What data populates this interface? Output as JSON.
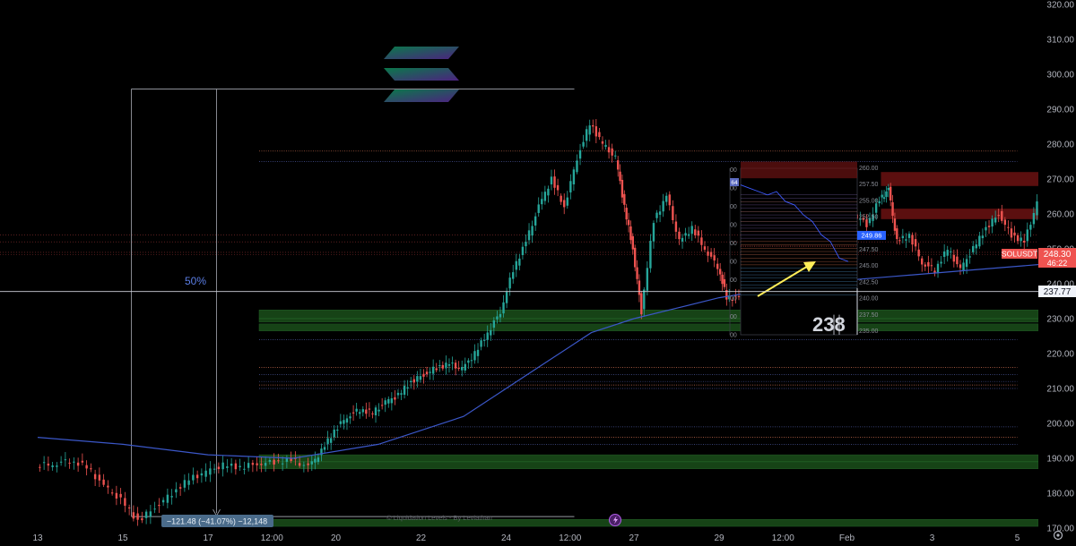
{
  "chart_data": {
    "type": "candlestick",
    "symbol": "SOLUSDT",
    "price_label": "248.30",
    "countdown": "46:22",
    "crosshair_price": "237.77",
    "fib_label": "50%",
    "measure_label": "−121.48 (−41.07%) −12,148",
    "watermark": "© Liquidation Levels - By Leviathan",
    "inset_big_label": "238",
    "inset_badge_price": "249.86",
    "inset_top_badge": "64",
    "ylim": [
      170,
      320
    ],
    "y_ticks": [
      "320.00",
      "310.00",
      "300.00",
      "290.00",
      "280.00",
      "270.00",
      "260.00",
      "250.00",
      "240.00",
      "230.00",
      "220.00",
      "210.00",
      "200.00",
      "190.00",
      "180.00",
      "170.00"
    ],
    "x_ticks": [
      "13",
      "15",
      "17",
      "12:00",
      "20",
      "22",
      "24",
      "12:00",
      "27",
      "29",
      "12:00",
      "Feb",
      "3",
      "5"
    ],
    "inset_y_ticks": [
      "260.00",
      "257.50",
      "255.00",
      "252.50",
      "250.00",
      "247.50",
      "245.00",
      "242.50",
      "240.00",
      "237.50",
      "235.00"
    ],
    "inset_left_ticks": [
      "00",
      "00",
      "00",
      "00",
      "00",
      "00",
      "00",
      "00",
      "00",
      "00"
    ],
    "price_path": [
      [
        0,
        188
      ],
      [
        0.4,
        188.3
      ],
      [
        0.8,
        189.5
      ],
      [
        1.2,
        187.5
      ],
      [
        1.6,
        182
      ],
      [
        2.0,
        178
      ],
      [
        2.4,
        172
      ],
      [
        2.8,
        176
      ],
      [
        3.2,
        180
      ],
      [
        3.6,
        184
      ],
      [
        4.0,
        186
      ],
      [
        4.4,
        188
      ],
      [
        4.8,
        187.5
      ],
      [
        5.2,
        188.5
      ],
      [
        5.6,
        189
      ],
      [
        6.0,
        189.5
      ],
      [
        6.4,
        187.5
      ],
      [
        6.7,
        192
      ],
      [
        7.0,
        198
      ],
      [
        7.3,
        202
      ],
      [
        7.6,
        204
      ],
      [
        7.9,
        203
      ],
      [
        8.2,
        206
      ],
      [
        8.5,
        208
      ],
      [
        8.8,
        212
      ],
      [
        9.1,
        214
      ],
      [
        9.4,
        216
      ],
      [
        9.7,
        217
      ],
      [
        10.0,
        215.5
      ],
      [
        10.3,
        220
      ],
      [
        10.6,
        226
      ],
      [
        10.9,
        232
      ],
      [
        11.2,
        244
      ],
      [
        11.5,
        252
      ],
      [
        11.8,
        262
      ],
      [
        12.1,
        270
      ],
      [
        12.4,
        262
      ],
      [
        12.7,
        276
      ],
      [
        13.0,
        286
      ],
      [
        13.3,
        280
      ],
      [
        13.6,
        276
      ],
      [
        13.8,
        262
      ],
      [
        14.0,
        250
      ],
      [
        14.2,
        232
      ],
      [
        14.5,
        258
      ],
      [
        14.8,
        265
      ],
      [
        15.1,
        252
      ],
      [
        15.4,
        256
      ],
      [
        15.7,
        250
      ],
      [
        16.0,
        245
      ],
      [
        16.2,
        236
      ],
      [
        16.5,
        236
      ],
      [
        16.8,
        244
      ],
      [
        17.1,
        238
      ],
      [
        17.4,
        236
      ],
      [
        17.7,
        248
      ],
      [
        18.0,
        252
      ],
      [
        18.3,
        254
      ],
      [
        18.6,
        257
      ],
      [
        18.9,
        253
      ],
      [
        19.2,
        260
      ],
      [
        19.5,
        257
      ],
      [
        19.8,
        264
      ],
      [
        20.0,
        267
      ],
      [
        20.2,
        252
      ],
      [
        20.5,
        254
      ],
      [
        20.8,
        246
      ],
      [
        21.1,
        244
      ],
      [
        21.4,
        250
      ],
      [
        21.7,
        244
      ],
      [
        22.0,
        250
      ],
      [
        22.3,
        256
      ],
      [
        22.6,
        260
      ],
      [
        22.9,
        254
      ],
      [
        23.2,
        252
      ],
      [
        23.5,
        263
      ],
      [
        23.8,
        268
      ],
      [
        24.1,
        266
      ],
      [
        24.4,
        262
      ],
      [
        24.7,
        256
      ],
      [
        25.0,
        250
      ],
      [
        25.3,
        246
      ],
      [
        25.6,
        250
      ],
      [
        25.9,
        247
      ],
      [
        26.2,
        254
      ],
      [
        26.5,
        258
      ],
      [
        26.8,
        257
      ],
      [
        27.1,
        254
      ],
      [
        27.4,
        256
      ],
      [
        27.7,
        253
      ],
      [
        28.0,
        254
      ],
      [
        28.3,
        251
      ],
      [
        28.6,
        252
      ],
      [
        28.9,
        248.3
      ]
    ],
    "ma_path": [
      [
        0,
        196
      ],
      [
        2,
        194
      ],
      [
        4,
        191
      ],
      [
        6,
        190
      ],
      [
        8,
        194
      ],
      [
        10,
        202
      ],
      [
        11,
        210
      ],
      [
        12,
        218
      ],
      [
        13,
        226
      ],
      [
        14,
        230
      ],
      [
        15,
        233
      ],
      [
        16,
        236
      ],
      [
        17,
        238
      ],
      [
        18,
        240
      ],
      [
        20,
        242
      ],
      [
        22,
        244
      ],
      [
        24,
        246
      ],
      [
        26,
        247
      ],
      [
        27,
        248
      ],
      [
        28,
        249
      ],
      [
        28.9,
        249.5
      ]
    ],
    "projection_path": [
      [
        29.1,
        247
      ],
      [
        29.4,
        237
      ],
      [
        29.7,
        240
      ],
      [
        30.0,
        252
      ],
      [
        30.3,
        259
      ],
      [
        30.6,
        258
      ],
      [
        30.9,
        260
      ],
      [
        31.2,
        258
      ],
      [
        31.5,
        257
      ],
      [
        31.8,
        258.5
      ],
      [
        32.1,
        258
      ],
      [
        32.4,
        258
      ]
    ],
    "inset_path": [
      [
        0,
        269.5
      ],
      [
        1,
        269
      ],
      [
        2,
        268.5
      ],
      [
        3,
        268
      ],
      [
        4,
        268.5
      ],
      [
        5,
        267
      ],
      [
        6,
        266.5
      ],
      [
        7,
        265
      ],
      [
        8,
        264
      ],
      [
        9,
        262
      ],
      [
        10,
        261
      ],
      [
        11,
        258.5
      ],
      [
        12,
        258
      ]
    ],
    "red_zones": [
      {
        "from": 270,
        "to": 272
      },
      {
        "from": 268,
        "to": 270
      },
      {
        "from": 260,
        "to": 261.5
      },
      {
        "from": 258.5,
        "to": 260
      }
    ],
    "green_zones": [
      {
        "from": 230,
        "to": 232.5
      },
      {
        "from": 229,
        "to": 230
      },
      {
        "from": 226.5,
        "to": 228.5
      },
      {
        "from": 189,
        "to": 191
      },
      {
        "from": 187,
        "to": 189
      },
      {
        "from": 170.5,
        "to": 172.5
      }
    ],
    "colors": {
      "up": "#26a69a",
      "down": "#ef5350",
      "ma": "#3b57c8",
      "projection": "#ffee58",
      "accent_blue": "#2962ff",
      "green_zone": "#1e5a1e",
      "red_zone": "#6b1212",
      "price_badge": "#ef5350",
      "logo": "#9945ff"
    }
  }
}
